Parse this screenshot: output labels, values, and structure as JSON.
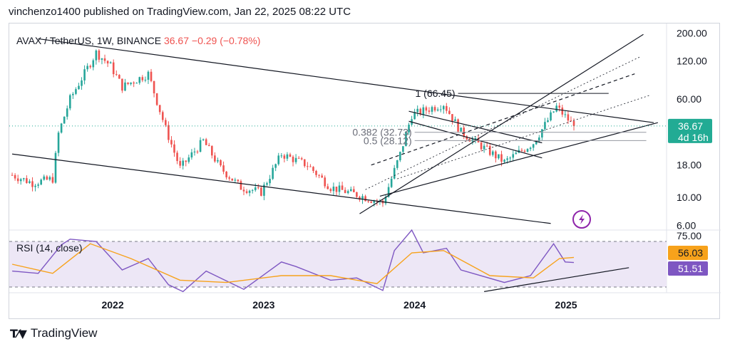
{
  "attribution": "vinchenzo1400 published on TradingView.com, Jan 22, 2025 08:22 UTC",
  "footer": {
    "brand": "TradingView",
    "logo_icon": "tradingview-logo-icon"
  },
  "colors": {
    "up": "#26a69a",
    "down": "#ef5350",
    "rsi": "#7e57c2",
    "rsi_ma": "#f7a21b",
    "rsi_band": "#ede7f6",
    "last_price": "#22ab94",
    "flash_icon": "#8e24aa"
  },
  "chart_data": [
    {
      "type": "candlestick",
      "title": "AVAX / TetherUS, 1W, BINANCE",
      "last": "36.67",
      "change": "−0.29 (−0.78%)",
      "price_label": "36.67",
      "countdown": "4d 16h",
      "scale": "log",
      "y_ticks": [
        "200.00",
        "120.00",
        "60.00",
        "18.00",
        "10.00",
        "6.00"
      ],
      "x_ticks": [
        "2022",
        "2023",
        "2024",
        "2025"
      ],
      "ylim": [
        5.5,
        220
      ],
      "xlim": [
        "2021-04-26",
        "2025-09-01"
      ],
      "approx_closes": [
        {
          "date": "2021-05-03",
          "close": 15
        },
        {
          "date": "2021-06-21",
          "close": 13
        },
        {
          "date": "2021-08-09",
          "close": 14
        },
        {
          "date": "2021-08-23",
          "close": 32
        },
        {
          "date": "2021-09-20",
          "close": 60
        },
        {
          "date": "2021-11-22",
          "close": 140
        },
        {
          "date": "2021-12-27",
          "close": 110
        },
        {
          "date": "2022-01-24",
          "close": 75
        },
        {
          "date": "2022-03-28",
          "close": 95
        },
        {
          "date": "2022-05-09",
          "close": 35
        },
        {
          "date": "2022-06-13",
          "close": 17
        },
        {
          "date": "2022-08-08",
          "close": 28
        },
        {
          "date": "2022-09-19",
          "close": 17
        },
        {
          "date": "2022-11-07",
          "close": 12
        },
        {
          "date": "2022-12-26",
          "close": 11
        },
        {
          "date": "2023-02-13",
          "close": 22
        },
        {
          "date": "2023-04-17",
          "close": 18
        },
        {
          "date": "2023-06-12",
          "close": 12
        },
        {
          "date": "2023-08-14",
          "close": 10.5
        },
        {
          "date": "2023-10-16",
          "close": 9
        },
        {
          "date": "2023-11-27",
          "close": 22
        },
        {
          "date": "2023-12-25",
          "close": 45
        },
        {
          "date": "2024-03-11",
          "close": 55
        },
        {
          "date": "2024-04-22",
          "close": 33
        },
        {
          "date": "2024-08-05",
          "close": 19
        },
        {
          "date": "2024-10-14",
          "close": 27
        },
        {
          "date": "2024-12-09",
          "close": 52
        },
        {
          "date": "2025-01-20",
          "close": 36.67
        }
      ],
      "annotations": [
        {
          "label": "1 (66.45)",
          "price": 66.45
        },
        {
          "label": "0.382 (32.73)",
          "price": 32.73
        },
        {
          "label": "0.5 (28.12)",
          "price": 28.12
        }
      ]
    },
    {
      "type": "line",
      "title": "RSI (14, close)",
      "ylim": [
        25,
        80
      ],
      "upper_band": 70,
      "lower_band": 30,
      "y_ticks": [
        "75.00"
      ],
      "series": [
        {
          "name": "RSI",
          "value_label": "51.51",
          "points": [
            {
              "date": "2021-05-03",
              "v": 44
            },
            {
              "date": "2021-07-05",
              "v": 42
            },
            {
              "date": "2021-08-30",
              "v": 67
            },
            {
              "date": "2021-09-20",
              "v": 72
            },
            {
              "date": "2021-11-22",
              "v": 70
            },
            {
              "date": "2022-01-24",
              "v": 45
            },
            {
              "date": "2022-03-28",
              "v": 55
            },
            {
              "date": "2022-05-16",
              "v": 32
            },
            {
              "date": "2022-06-20",
              "v": 26
            },
            {
              "date": "2022-08-15",
              "v": 44
            },
            {
              "date": "2022-11-14",
              "v": 28
            },
            {
              "date": "2023-02-13",
              "v": 52
            },
            {
              "date": "2023-03-20",
              "v": 48
            },
            {
              "date": "2023-06-12",
              "v": 36
            },
            {
              "date": "2023-08-14",
              "v": 38
            },
            {
              "date": "2023-10-16",
              "v": 27
            },
            {
              "date": "2023-11-13",
              "v": 62
            },
            {
              "date": "2023-12-25",
              "v": 80
            },
            {
              "date": "2024-01-22",
              "v": 60
            },
            {
              "date": "2024-03-18",
              "v": 64
            },
            {
              "date": "2024-04-22",
              "v": 45
            },
            {
              "date": "2024-08-05",
              "v": 34
            },
            {
              "date": "2024-10-07",
              "v": 40
            },
            {
              "date": "2024-12-02",
              "v": 68
            },
            {
              "date": "2024-12-30",
              "v": 52
            },
            {
              "date": "2025-01-20",
              "v": 51.51
            }
          ]
        },
        {
          "name": "RSI-based MA",
          "value_label": "56.03",
          "points": [
            {
              "date": "2021-05-03",
              "v": 50
            },
            {
              "date": "2021-08-09",
              "v": 42
            },
            {
              "date": "2021-11-08",
              "v": 68
            },
            {
              "date": "2022-02-14",
              "v": 55
            },
            {
              "date": "2022-06-13",
              "v": 36
            },
            {
              "date": "2022-10-03",
              "v": 34
            },
            {
              "date": "2023-02-13",
              "v": 40
            },
            {
              "date": "2023-06-12",
              "v": 40
            },
            {
              "date": "2023-10-02",
              "v": 33
            },
            {
              "date": "2023-12-25",
              "v": 60
            },
            {
              "date": "2024-03-11",
              "v": 62
            },
            {
              "date": "2024-07-01",
              "v": 40
            },
            {
              "date": "2024-10-14",
              "v": 38
            },
            {
              "date": "2024-12-16",
              "v": 55
            },
            {
              "date": "2025-01-20",
              "v": 56.03
            }
          ]
        }
      ]
    }
  ]
}
